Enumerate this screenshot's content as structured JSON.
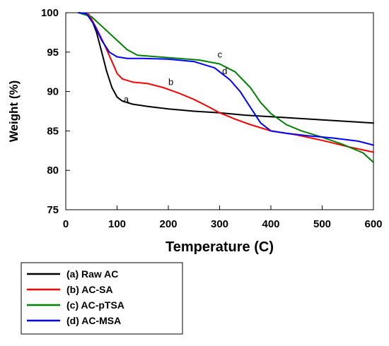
{
  "chart_data": {
    "type": "line",
    "title": "",
    "xlabel": "Temperature (C)",
    "ylabel": "Weight (%)",
    "xlim": [
      0,
      600
    ],
    "ylim": [
      75,
      100
    ],
    "xticks": [
      0,
      100,
      200,
      300,
      400,
      500,
      600
    ],
    "yticks": [
      75,
      80,
      85,
      90,
      95,
      100
    ],
    "grid": false,
    "legend_position": "below-left",
    "series": [
      {
        "name": "(a) Raw AC",
        "curve_label": "a",
        "label_at": [
          113,
          88.6
        ],
        "color": "#000000",
        "points": [
          [
            25,
            100
          ],
          [
            40,
            99.8
          ],
          [
            50,
            99.2
          ],
          [
            60,
            97.5
          ],
          [
            70,
            95.0
          ],
          [
            80,
            92.5
          ],
          [
            90,
            90.5
          ],
          [
            100,
            89.3
          ],
          [
            110,
            88.8
          ],
          [
            130,
            88.4
          ],
          [
            160,
            88.1
          ],
          [
            200,
            87.8
          ],
          [
            250,
            87.5
          ],
          [
            300,
            87.3
          ],
          [
            350,
            87.0
          ],
          [
            400,
            86.8
          ],
          [
            450,
            86.6
          ],
          [
            500,
            86.4
          ],
          [
            550,
            86.2
          ],
          [
            600,
            86.0
          ]
        ]
      },
      {
        "name": "(b) AC-SA",
        "curve_label": "b",
        "label_at": [
          200,
          90.8
        ],
        "color": "#ff0000",
        "points": [
          [
            25,
            100
          ],
          [
            45,
            99.8
          ],
          [
            60,
            98.0
          ],
          [
            75,
            96.0
          ],
          [
            90,
            93.8
          ],
          [
            100,
            92.3
          ],
          [
            110,
            91.6
          ],
          [
            130,
            91.2
          ],
          [
            160,
            91.0
          ],
          [
            190,
            90.5
          ],
          [
            220,
            89.8
          ],
          [
            250,
            89.0
          ],
          [
            280,
            88.0
          ],
          [
            300,
            87.3
          ],
          [
            330,
            86.5
          ],
          [
            360,
            85.8
          ],
          [
            400,
            85.0
          ],
          [
            450,
            84.5
          ],
          [
            500,
            83.8
          ],
          [
            550,
            83.0
          ],
          [
            600,
            82.3
          ]
        ]
      },
      {
        "name": "(c) AC-pTSA",
        "curve_label": "c",
        "label_at": [
          296,
          94.3
        ],
        "color": "#008000",
        "points": [
          [
            25,
            100
          ],
          [
            50,
            99.5
          ],
          [
            75,
            98.0
          ],
          [
            100,
            96.5
          ],
          [
            120,
            95.3
          ],
          [
            140,
            94.6
          ],
          [
            180,
            94.4
          ],
          [
            220,
            94.2
          ],
          [
            260,
            94.0
          ],
          [
            300,
            93.5
          ],
          [
            330,
            92.5
          ],
          [
            360,
            90.5
          ],
          [
            380,
            88.6
          ],
          [
            400,
            87.2
          ],
          [
            430,
            85.8
          ],
          [
            460,
            85.0
          ],
          [
            500,
            84.2
          ],
          [
            540,
            83.3
          ],
          [
            580,
            82.2
          ],
          [
            600,
            81.0
          ]
        ]
      },
      {
        "name": "(d) AC-MSA",
        "curve_label": "d",
        "label_at": [
          305,
          92.2
        ],
        "color": "#0000ff",
        "points": [
          [
            25,
            100
          ],
          [
            40,
            99.9
          ],
          [
            55,
            98.5
          ],
          [
            70,
            96.5
          ],
          [
            85,
            95.0
          ],
          [
            100,
            94.4
          ],
          [
            120,
            94.2
          ],
          [
            150,
            94.2
          ],
          [
            200,
            94.1
          ],
          [
            250,
            93.8
          ],
          [
            290,
            93.0
          ],
          [
            320,
            91.5
          ],
          [
            340,
            90.0
          ],
          [
            360,
            88.0
          ],
          [
            380,
            86.0
          ],
          [
            400,
            85.0
          ],
          [
            430,
            84.7
          ],
          [
            470,
            84.4
          ],
          [
            520,
            84.1
          ],
          [
            570,
            83.7
          ],
          [
            600,
            83.2
          ]
        ]
      }
    ]
  }
}
